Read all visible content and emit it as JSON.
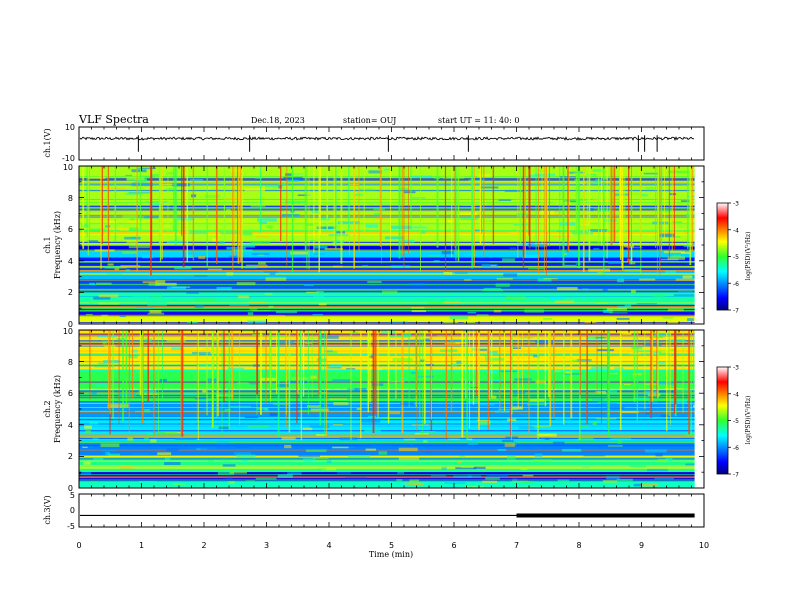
{
  "header": {
    "title": "VLF Spectra",
    "date": "Dec.18, 2023",
    "station": "station= OUJ",
    "start_time": "start  UT  =   11: 40: 0"
  },
  "chart_data": [
    {
      "type": "line",
      "name": "ch1-waveform",
      "ylabel": "ch.1(V)",
      "ylim": [
        -10,
        10
      ],
      "yticks": [
        "10",
        "-10"
      ],
      "xlim": [
        0,
        10
      ],
      "baseline": 3,
      "data_end_min": 9.85,
      "spikes_min": [
        0.95,
        2.73,
        4.95,
        6.23,
        8.95,
        9.05,
        9.25
      ]
    },
    {
      "type": "heatmap",
      "name": "ch1-spectrogram",
      "ylabel": "ch.1\nFrequency (kHz)",
      "ylim": [
        0,
        10
      ],
      "yticks": [
        "0",
        "2",
        "4",
        "6",
        "8",
        "10"
      ],
      "xlim": [
        0,
        10
      ],
      "colorbar": {
        "label": "log(PSD)(V²/Hz)",
        "range": [
          -7,
          -3
        ],
        "ticks": [
          "-3",
          "-4",
          "-5",
          "-6",
          "-7"
        ]
      },
      "bands_khz": [
        {
          "from": 5.0,
          "to": 10.0,
          "level": 0.58
        },
        {
          "from": 4.6,
          "to": 5.0,
          "level": 0.08
        },
        {
          "from": 4.2,
          "to": 4.6,
          "level": 0.32
        },
        {
          "from": 3.4,
          "to": 4.2,
          "level": 0.14
        },
        {
          "from": 2.8,
          "to": 3.4,
          "level": 0.3
        },
        {
          "from": 2.0,
          "to": 2.8,
          "level": 0.2
        },
        {
          "from": 1.0,
          "to": 2.0,
          "level": 0.42
        },
        {
          "from": 0.5,
          "to": 1.0,
          "level": 0.12
        },
        {
          "from": 0.0,
          "to": 0.5,
          "level": 0.62
        }
      ]
    },
    {
      "type": "heatmap",
      "name": "ch2-spectrogram",
      "ylabel": "ch.2\nFrequency (kHz)",
      "ylim": [
        0,
        10
      ],
      "yticks": [
        "0",
        "2",
        "4",
        "6",
        "8",
        "10"
      ],
      "xlim": [
        0,
        10
      ],
      "colorbar": {
        "label": "log(PSD)(V²/Hz)",
        "range": [
          -7,
          -3
        ],
        "ticks": [
          "-3",
          "-4",
          "-5",
          "-6",
          "-7"
        ]
      },
      "bands_khz": [
        {
          "from": 7.5,
          "to": 10.0,
          "level": 0.66
        },
        {
          "from": 5.5,
          "to": 7.5,
          "level": 0.48
        },
        {
          "from": 4.5,
          "to": 5.5,
          "level": 0.26
        },
        {
          "from": 3.0,
          "to": 4.5,
          "level": 0.34
        },
        {
          "from": 2.0,
          "to": 3.0,
          "level": 0.24
        },
        {
          "from": 1.0,
          "to": 2.0,
          "level": 0.44
        },
        {
          "from": 0.4,
          "to": 1.0,
          "level": 0.1
        },
        {
          "from": 0.0,
          "to": 0.4,
          "level": 0.4
        }
      ]
    },
    {
      "type": "line",
      "name": "ch3-waveform",
      "ylabel": "ch.3(V)",
      "ylim": [
        -5,
        5
      ],
      "yticks": [
        "5",
        "0",
        "-5"
      ],
      "xlim": [
        0,
        10
      ],
      "baseline": -1.5,
      "thick_from_min": 7.0,
      "data_end_min": 9.85
    }
  ],
  "xaxis": {
    "label": "Time (min)",
    "ticks": [
      "0",
      "1",
      "2",
      "3",
      "4",
      "5",
      "6",
      "7",
      "8",
      "9",
      "10"
    ]
  }
}
